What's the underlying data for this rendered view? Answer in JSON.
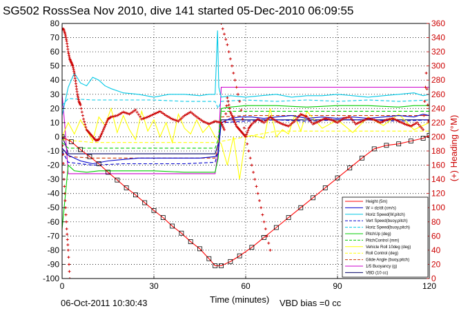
{
  "chart_data": {
    "type": "line",
    "title": "SG502 RossSea Nov 2010, dive 141 started 05-Dec-2010 06:09:55",
    "xlabel": "Time (minutes)",
    "ylabel_right": "(+) Heading (°M)",
    "xlim": [
      0,
      120
    ],
    "ylim": [
      -100,
      80
    ],
    "ylim_right": [
      0,
      360
    ],
    "x_ticks": [
      0,
      30,
      60,
      90,
      120
    ],
    "y_ticks": [
      80,
      70,
      60,
      50,
      40,
      30,
      20,
      10,
      0,
      -10,
      -20,
      -30,
      -40,
      -50,
      -60,
      -70,
      -80,
      -90,
      -100
    ],
    "y_ticks_right": [
      360,
      340,
      320,
      300,
      280,
      260,
      240,
      220,
      200,
      180,
      160,
      140,
      120,
      100,
      80,
      60,
      40,
      20,
      0
    ],
    "grid": true,
    "legend_position": "bottom-right",
    "footer_date": "06-Oct-2011 10:30:43",
    "footer_note": "VBD bias =0 cc",
    "series": [
      {
        "name": "Height (5m)",
        "color": "#ff0000",
        "style": "solid",
        "marker": "square",
        "x": [
          0,
          3,
          6,
          9,
          12,
          15,
          18,
          21,
          24,
          27,
          30,
          33,
          36,
          39,
          42,
          45,
          48,
          50,
          52,
          55,
          58,
          62,
          66,
          70,
          74,
          78,
          82,
          86,
          90,
          94,
          98,
          102,
          106,
          110,
          114,
          118,
          120
        ],
        "y": [
          0,
          -3.5,
          -9,
          -14,
          -19,
          -25,
          -30.5,
          -36,
          -41,
          -46.5,
          -52,
          -57,
          -63,
          -68,
          -74,
          -79,
          -86,
          -91,
          -91,
          -88,
          -84,
          -78,
          -71,
          -64,
          -57,
          -50,
          -43,
          -36,
          -29,
          -22,
          -15,
          -8.5,
          -6,
          -5,
          -3,
          -1,
          1
        ]
      },
      {
        "name": "W = dz/dt (cm/s)",
        "color": "#0000cc",
        "style": "solid",
        "marker": "none",
        "x": [
          0,
          2,
          4,
          6,
          8,
          10,
          15,
          20,
          25,
          30,
          35,
          40,
          45,
          50,
          51,
          52,
          55,
          58,
          62,
          66,
          70,
          75,
          80,
          85,
          90,
          95,
          100,
          105,
          110,
          115,
          118,
          120
        ],
        "y": [
          -8,
          -13,
          -15,
          -17,
          -18,
          -19,
          -17,
          -16,
          -15,
          -15,
          -15,
          -15,
          -15,
          -14,
          -12,
          10,
          13,
          14,
          14,
          13,
          14,
          15,
          13,
          14,
          13,
          14,
          13,
          14,
          15,
          14,
          16,
          15
        ]
      },
      {
        "name": "Horiz Speed(W,pitch)",
        "color": "#00c8e6",
        "style": "solid",
        "marker": "none",
        "x": [
          0,
          2,
          4,
          6,
          8,
          10,
          12,
          14,
          16,
          20,
          25,
          30,
          35,
          40,
          45,
          48,
          50,
          50.8,
          51.2,
          52,
          55,
          60,
          65,
          70,
          75,
          80,
          85,
          90,
          95,
          100,
          105,
          110,
          115,
          118,
          120
        ],
        "y": [
          15,
          35,
          45,
          38,
          36,
          42,
          40,
          36,
          34,
          31,
          30,
          28,
          30,
          30,
          29,
          30,
          30,
          75,
          35,
          28,
          29,
          28,
          29,
          30,
          28,
          29,
          29,
          30,
          29,
          28,
          29,
          30,
          31,
          29,
          30
        ]
      },
      {
        "name": "Vert Speed(buoy,pitch)",
        "color": "#0000cc",
        "style": "dashed",
        "marker": "none",
        "x": [
          0,
          2,
          10,
          20,
          30,
          40,
          50,
          51,
          52,
          60,
          70,
          80,
          90,
          100,
          110,
          120
        ],
        "y": [
          -10,
          -18,
          -20,
          -19,
          -19,
          -19,
          -18,
          -10,
          10,
          11,
          12,
          11,
          12,
          12,
          11,
          12
        ]
      },
      {
        "name": "Horiz Speed(buoy,pitch)",
        "color": "#00c8e6",
        "style": "dashed",
        "marker": "none",
        "x": [
          0,
          2,
          10,
          20,
          30,
          40,
          50,
          51,
          52,
          60,
          70,
          80,
          90,
          100,
          110,
          120
        ],
        "y": [
          22,
          27,
          26,
          26,
          26,
          25,
          25,
          20,
          25,
          26,
          25,
          26,
          25,
          26,
          25,
          26
        ]
      },
      {
        "name": "PitchUp (deg)",
        "color": "#00cc00",
        "style": "solid",
        "marker": "none",
        "x": [
          0,
          2,
          4,
          8,
          12,
          16,
          20,
          30,
          40,
          50,
          51,
          52,
          55,
          60,
          70,
          80,
          90,
          100,
          110,
          115,
          120
        ],
        "y": [
          -65,
          -20,
          -24,
          -25,
          -24,
          -24,
          -24,
          -24,
          -25,
          -25,
          -15,
          20,
          21,
          22,
          22,
          21,
          22,
          22,
          21,
          22,
          22
        ]
      },
      {
        "name": "PitchControl (mm)",
        "color": "#00cc00",
        "style": "dashed",
        "marker": "none",
        "x": [
          0,
          2,
          10,
          20,
          30,
          40,
          50,
          51,
          52,
          60,
          70,
          80,
          90,
          100,
          110,
          120
        ],
        "y": [
          -4,
          -8,
          -8,
          -8,
          -8,
          -8,
          -8,
          -2,
          18,
          18,
          18,
          18,
          18,
          18,
          18,
          18
        ]
      },
      {
        "name": "Vehicle Roll 10deg (deg)",
        "color": "#ffff00",
        "style": "solid",
        "marker": "none",
        "x": [
          0,
          2,
          4,
          6,
          8,
          10,
          12,
          14,
          16,
          18,
          20,
          22,
          24,
          26,
          28,
          30,
          32,
          34,
          36,
          38,
          40,
          42,
          44,
          46,
          48,
          50,
          52,
          54,
          56,
          58,
          60,
          62,
          64,
          66,
          68,
          70,
          72,
          74,
          76,
          78,
          80,
          85,
          90,
          95,
          100,
          105,
          110,
          115,
          120
        ],
        "y": [
          0,
          10,
          2,
          12,
          5,
          -3,
          14,
          8,
          20,
          3,
          15,
          5,
          -2,
          18,
          4,
          12,
          0,
          10,
          -4,
          16,
          6,
          2,
          12,
          3,
          8,
          0,
          -5,
          -20,
          0,
          -30,
          0,
          1,
          0,
          -1,
          20,
          0,
          5,
          2,
          15,
          4,
          18,
          6,
          12,
          3,
          14,
          8,
          16,
          5,
          10
        ]
      },
      {
        "name": "Roll Control (deg)",
        "color": "#ffff00",
        "style": "dashed",
        "marker": "none",
        "x": [
          0,
          10,
          20,
          30,
          40,
          50,
          60,
          70,
          80,
          90,
          100,
          110,
          120
        ],
        "y": [
          -2,
          -4,
          -4,
          -4,
          -4,
          -4,
          0,
          4,
          4,
          4,
          4,
          4,
          4
        ]
      },
      {
        "name": "Glide Angle (buoy,pitch)",
        "color": "#cc3300",
        "style": "dashed",
        "marker": "none",
        "x": [
          0,
          2,
          10,
          20,
          30,
          40,
          50,
          51,
          52,
          60,
          70,
          80,
          90,
          100,
          110,
          120
        ],
        "y": [
          -8,
          -14,
          -15,
          -15,
          -15,
          -15,
          -15,
          -8,
          14,
          15,
          15,
          15,
          15,
          15,
          15,
          15
        ]
      },
      {
        "name": "1/5 Buoyancy (g)",
        "color": "#cc00cc",
        "style": "solid",
        "marker": "none",
        "x": [
          0,
          1,
          2,
          4,
          10,
          20,
          30,
          40,
          50,
          51,
          52,
          60,
          70,
          80,
          90,
          100,
          110,
          120
        ],
        "y": [
          30,
          5,
          -26,
          -26,
          -26,
          -26,
          -26,
          -26,
          -26,
          -10,
          35,
          35,
          35,
          35,
          35,
          35,
          35,
          35
        ]
      },
      {
        "name": "VBD (10 cc)",
        "color": "#000066",
        "style": "solid",
        "marker": "none",
        "x": [
          0,
          1,
          2,
          4,
          10,
          20,
          30,
          40,
          50,
          51,
          52,
          60,
          70,
          80,
          90,
          100,
          110,
          120
        ],
        "y": [
          0,
          -5,
          -12,
          -12,
          -12,
          -12,
          -12,
          -12,
          -12,
          -5,
          12,
          12,
          12,
          12,
          12,
          12,
          12,
          12
        ]
      }
    ],
    "heading_series": {
      "name": "Heading (°M)",
      "color": "#cc0000",
      "marker": "plus",
      "axis": "right",
      "x": [
        0,
        0.5,
        1,
        1.5,
        2,
        2.5,
        3,
        3.5,
        4,
        4.5,
        5,
        5.5,
        6,
        7,
        8,
        9,
        10,
        11,
        12,
        13,
        14,
        15,
        16,
        18,
        20,
        22,
        24,
        26,
        28,
        30,
        32,
        34,
        36,
        38,
        40,
        42,
        44,
        46,
        48,
        50,
        52,
        53,
        54,
        55,
        56,
        57,
        58,
        59,
        60,
        61,
        62,
        64,
        66,
        68,
        70,
        72,
        74,
        76,
        78,
        80,
        82,
        84,
        86,
        88,
        90,
        92,
        94,
        96,
        98,
        100,
        102,
        104,
        106,
        108,
        110,
        112,
        114,
        116,
        118,
        119,
        120
      ],
      "y": [
        352,
        352,
        345,
        335,
        320,
        310,
        305,
        300,
        290,
        275,
        260,
        250,
        245,
        225,
        210,
        205,
        200,
        195,
        196,
        205,
        215,
        225,
        228,
        230,
        235,
        232,
        238,
        225,
        228,
        232,
        236,
        230,
        225,
        222,
        230,
        235,
        228,
        222,
        218,
        222,
        220,
        210,
        255,
        235,
        225,
        215,
        210,
        205,
        200,
        212,
        218,
        225,
        220,
        228,
        222,
        218,
        215,
        222,
        232,
        228,
        218,
        222,
        226,
        224,
        220,
        226,
        228,
        218,
        222,
        226,
        224,
        220,
        224,
        226,
        222,
        218,
        215,
        220,
        210,
        290,
        200
      ],
      "y_bottom_drop": {
        "x": [
          0,
          0.5,
          1,
          1.5,
          2,
          2.5
        ],
        "y": [
          200,
          150,
          110,
          70,
          40,
          0
        ]
      },
      "y_mid_drop": {
        "x": [
          52,
          54,
          56,
          58,
          60,
          62,
          64,
          66,
          68
        ],
        "y": [
          360,
          330,
          290,
          250,
          200,
          160,
          120,
          80,
          40
        ]
      }
    }
  }
}
